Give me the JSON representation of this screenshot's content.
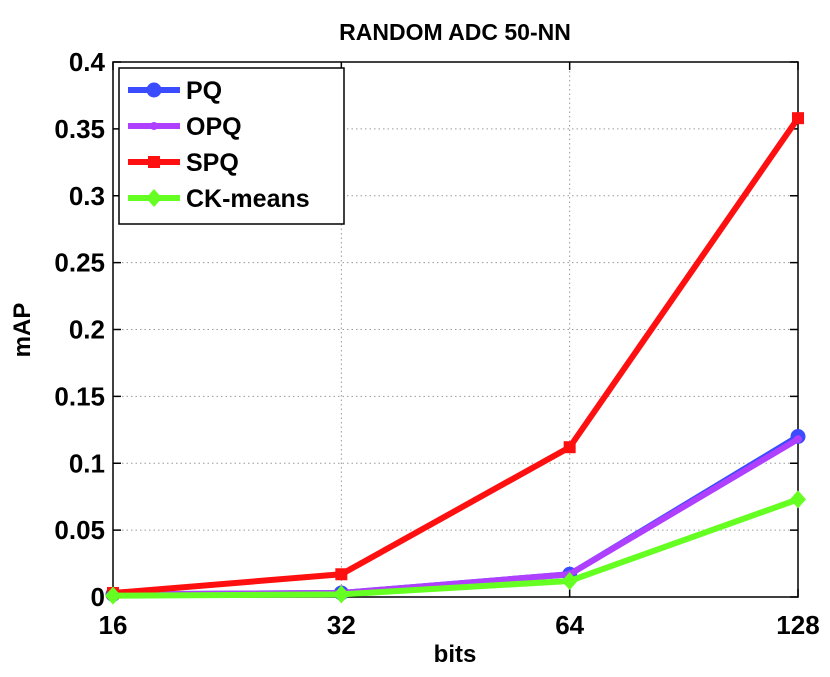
{
  "chart_data": {
    "type": "line",
    "title": "RANDOM ADC 50-NN",
    "xlabel": "bits",
    "ylabel": "mAP",
    "x": [
      16,
      32,
      64,
      128
    ],
    "x_tick_labels": [
      "16",
      "32",
      "64",
      "128"
    ],
    "x_scale": "log2",
    "xlim": [
      16,
      128
    ],
    "ylim": [
      0,
      0.4
    ],
    "y_ticks": [
      0,
      0.05,
      0.1,
      0.15,
      0.2,
      0.25,
      0.3,
      0.35,
      0.4
    ],
    "y_tick_labels": [
      "0",
      "0.05",
      "0.1",
      "0.15",
      "0.2",
      "0.25",
      "0.3",
      "0.35",
      "0.4"
    ],
    "grid": true,
    "legend_position": "top-left",
    "series": [
      {
        "name": "PQ",
        "values": [
          0.002,
          0.003,
          0.017,
          0.12
        ],
        "color": "#3b4cff",
        "marker": "circle"
      },
      {
        "name": "OPQ",
        "values": [
          0.002,
          0.003,
          0.017,
          0.118
        ],
        "color": "#b040ff",
        "marker": "star"
      },
      {
        "name": "SPQ",
        "values": [
          0.003,
          0.017,
          0.112,
          0.358
        ],
        "color": "#ff1010",
        "marker": "square"
      },
      {
        "name": "CK-means",
        "values": [
          0.001,
          0.002,
          0.012,
          0.073
        ],
        "color": "#66ff22",
        "marker": "diamond"
      }
    ]
  }
}
